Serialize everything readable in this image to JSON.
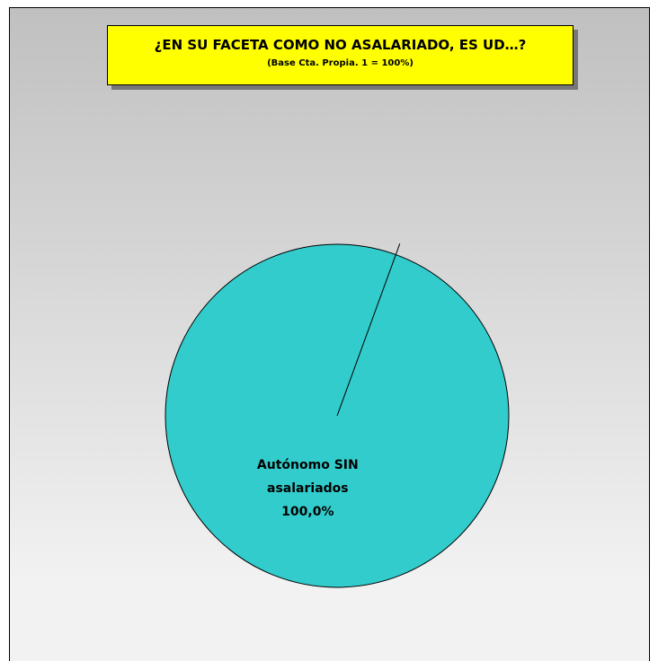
{
  "chart_data": {
    "type": "pie",
    "title": "¿EN SU FACETA COMO NO ASALARIADO, ES UD…?",
    "subtitle": "(Base Cta. Propia. 1 = 100%)",
    "categories": [
      "Autónomo SIN asalariados"
    ],
    "values": [
      100
    ],
    "value_labels": [
      "100,0%"
    ],
    "colors": [
      "#33cccc"
    ]
  }
}
